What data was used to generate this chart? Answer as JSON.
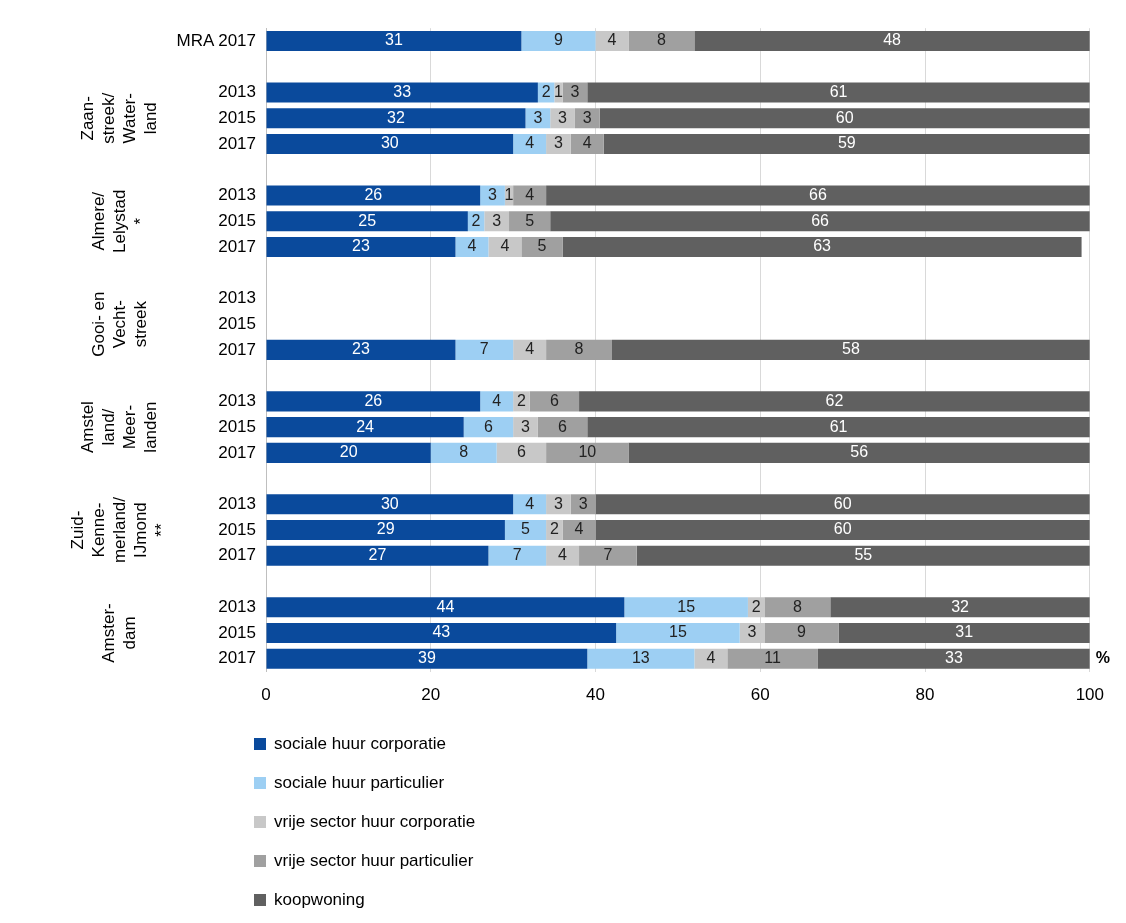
{
  "chart_data": {
    "type": "bar",
    "orientation": "horizontal",
    "stacked": true,
    "grid": "x",
    "legend": "bottom",
    "xlabel": "%",
    "xlim": [
      0,
      100
    ],
    "xticks": [
      0,
      20,
      40,
      60,
      80,
      100
    ],
    "categories": [
      "MRA 2017",
      null,
      "2013",
      "2015",
      "2017",
      null,
      "2013",
      "2015",
      "2017",
      null,
      "2013",
      "2015",
      "2017",
      null,
      "2013",
      "2015",
      "2017",
      null,
      "2013",
      "2015",
      "2017",
      null,
      "2013",
      "2015",
      "2017"
    ],
    "annotations": [
      "Zaan-\nstreek/\nWater-\nland",
      "Almere/\nLelystad\n*",
      "Gooi- en\nVecht-\nstreek",
      "Amstel\nland/\nMeer-\nlanden",
      "Zuid-\nKenne-\nmerland/\nIJmond\n**",
      "Amster-\ndam"
    ],
    "series": [
      {
        "name": "sociale huur corporatie",
        "color": "#0a4a9c",
        "values": [
          31,
          null,
          33,
          31.5,
          30,
          null,
          26,
          24.5,
          23,
          null,
          null,
          null,
          23,
          null,
          26,
          24,
          20,
          null,
          30,
          29,
          27,
          null,
          43.5,
          42.5,
          39
        ],
        "value_labels": [
          "31",
          null,
          "33",
          "32",
          "30",
          null,
          "26",
          "25",
          "23",
          null,
          null,
          null,
          "23",
          null,
          "26",
          "24",
          "20",
          null,
          "30",
          "29",
          "27",
          null,
          "44",
          "43",
          "39"
        ]
      },
      {
        "name": "sociale huur  particulier",
        "color": "#9dcff3",
        "values": [
          9,
          null,
          2,
          3,
          4,
          null,
          3,
          2,
          4,
          null,
          null,
          null,
          7,
          null,
          4,
          6,
          8,
          null,
          4,
          5,
          7,
          null,
          15,
          15,
          13
        ],
        "value_labels": [
          "9",
          null,
          "2",
          "3",
          "4",
          null,
          "3",
          "2",
          "4",
          null,
          null,
          null,
          "7",
          null,
          "4",
          "6",
          "8",
          null,
          "4",
          "5",
          "7",
          null,
          "15",
          "15",
          "13"
        ]
      },
      {
        "name": "vrije sector huur corporatie",
        "color": "#c8c8c8",
        "values": [
          4,
          null,
          1,
          3,
          3,
          null,
          1,
          3,
          4,
          null,
          null,
          null,
          4,
          null,
          2,
          3,
          6,
          null,
          3,
          2,
          4,
          null,
          2,
          3,
          4
        ],
        "value_labels": [
          "4",
          null,
          "1",
          "3",
          "3",
          null,
          "1",
          "3",
          "4",
          null,
          null,
          null,
          "4",
          null,
          "2",
          "3",
          "6",
          null,
          "3",
          "2",
          "4",
          null,
          "2",
          "3",
          "4"
        ]
      },
      {
        "name": "vrije sector huur particulier",
        "color": "#a0a0a0",
        "values": [
          8,
          null,
          3,
          3,
          4,
          null,
          4,
          5,
          5,
          null,
          null,
          null,
          8,
          null,
          6,
          6,
          10,
          null,
          3,
          4,
          7,
          null,
          8,
          9,
          11
        ],
        "value_labels": [
          "8",
          null,
          "3",
          "3",
          "4",
          null,
          "4",
          "5",
          "5",
          null,
          null,
          null,
          "8",
          null,
          "6",
          "6",
          "10",
          null,
          "3",
          "4",
          "7",
          null,
          "8",
          "9",
          "11"
        ]
      },
      {
        "name": "koopwoning",
        "color": "#606060",
        "values": [
          48,
          null,
          61,
          59.5,
          59,
          null,
          66,
          65.5,
          63,
          null,
          null,
          null,
          58,
          null,
          62,
          61,
          56,
          null,
          60,
          60,
          55,
          null,
          31.5,
          30.5,
          33
        ],
        "value_labels": [
          "48",
          null,
          "61",
          "60",
          "59",
          null,
          "66",
          "66",
          "63",
          null,
          null,
          null,
          "58",
          null,
          "62",
          "61",
          "56",
          null,
          "60",
          "60",
          "55",
          null,
          "32",
          "31",
          "33"
        ]
      }
    ]
  }
}
